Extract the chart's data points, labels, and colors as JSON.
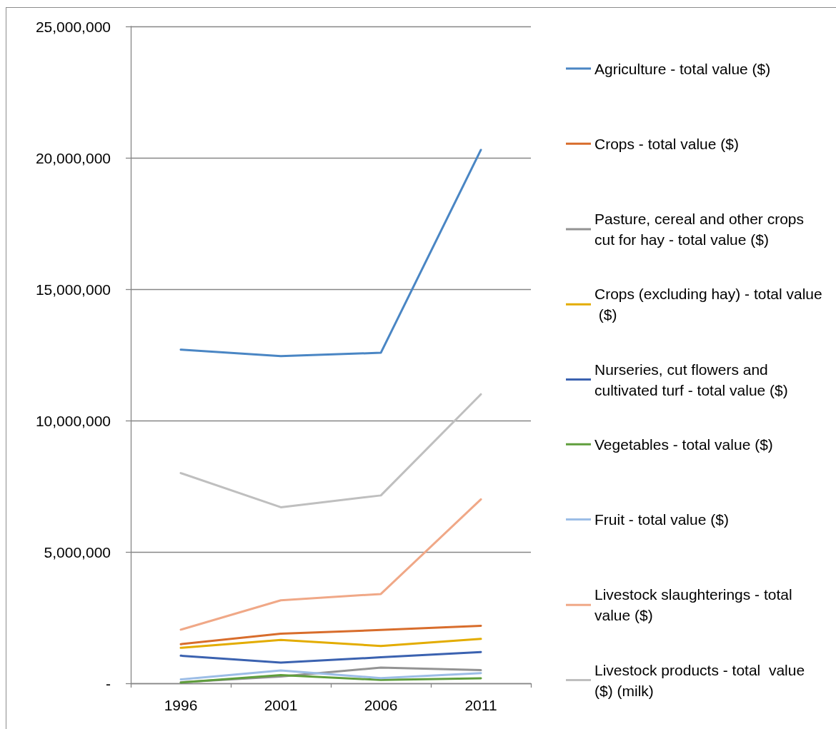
{
  "chart_data": {
    "type": "line",
    "categories": [
      "1996",
      "2001",
      "2006",
      "2011"
    ],
    "ylim": [
      0,
      25000000
    ],
    "yticks": [
      {
        "value": 0,
        "label": "-"
      },
      {
        "value": 5000000,
        "label": "5,000,000"
      },
      {
        "value": 10000000,
        "label": "10,000,000"
      },
      {
        "value": 15000000,
        "label": "15,000,000"
      },
      {
        "value": 20000000,
        "label": "20,000,000"
      },
      {
        "value": 25000000,
        "label": "25,000,000"
      }
    ],
    "grid": "y",
    "legend": "right",
    "marker": "none",
    "line_style": "solid",
    "series": [
      {
        "name": "Agriculture - total value ($)",
        "color": "#4a86c4",
        "values": [
          12700000,
          12450000,
          12580000,
          20300000
        ]
      },
      {
        "name": "Crops - total value ($)",
        "color": "#d86d2c",
        "values": [
          1490000,
          1890000,
          2030000,
          2190000
        ]
      },
      {
        "name": "Pasture, cereal and other crops cut for hay - total value ($)",
        "color": "#939393",
        "values": [
          40000,
          260000,
          600000,
          500000
        ]
      },
      {
        "name": "Crops (excluding hay) - total value ($)",
        "color": "#e3ac00",
        "values": [
          1350000,
          1650000,
          1420000,
          1690000
        ]
      },
      {
        "name": "Nurseries, cut flowers and cultivated turf - total value ($)",
        "color": "#3b62b0",
        "values": [
          1050000,
          790000,
          990000,
          1190000
        ]
      },
      {
        "name": "Vegetables - total value ($)",
        "color": "#5f9e3c",
        "values": [
          30000,
          310000,
          130000,
          190000
        ]
      },
      {
        "name": "Fruit - total value ($)",
        "color": "#9cbde6",
        "values": [
          150000,
          490000,
          200000,
          390000
        ]
      },
      {
        "name": "Livestock slaughterings - total value ($)",
        "color": "#f0a887",
        "values": [
          2040000,
          3160000,
          3400000,
          7000000
        ]
      },
      {
        "name": "Livestock products - total  value ($) (milk)",
        "color": "#bfbfbf",
        "values": [
          8000000,
          6700000,
          7150000,
          11000000
        ]
      }
    ]
  }
}
